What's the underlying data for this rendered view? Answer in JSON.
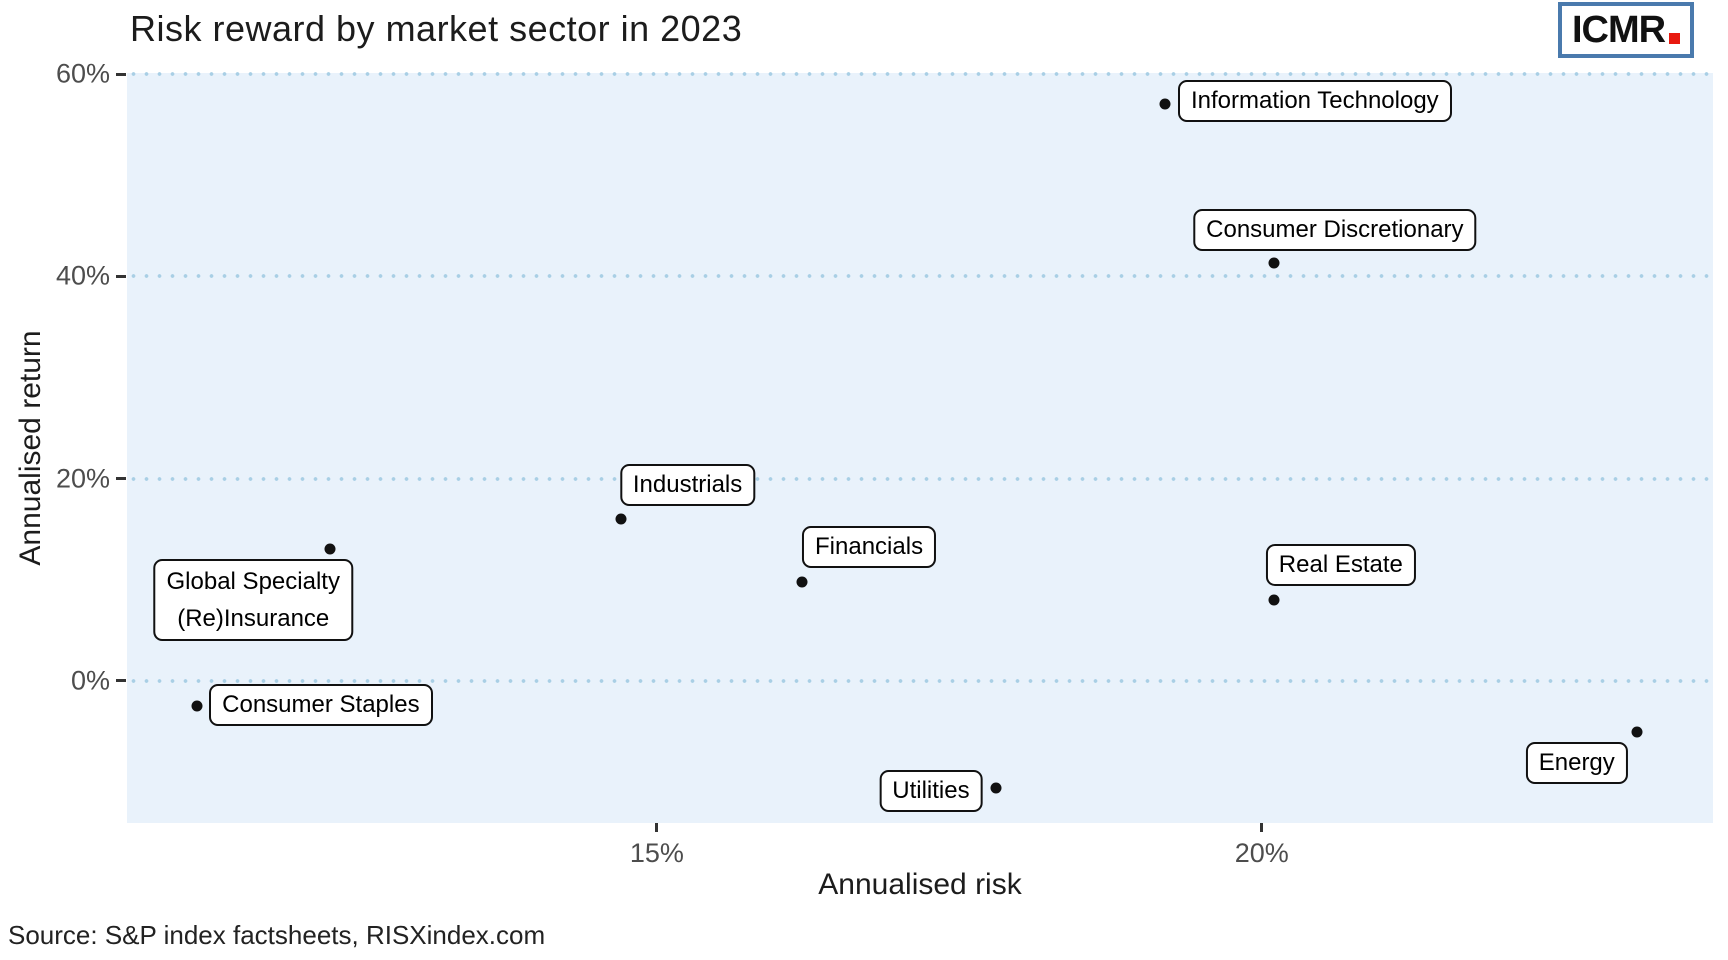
{
  "title": "Risk reward by market sector in 2023",
  "logo": {
    "text": "ICMR"
  },
  "source": "Source: S&P index factsheets, RISXindex.com",
  "chart_data": {
    "type": "scatter",
    "title": "Risk reward by market sector in 2023",
    "xlabel": "Annualised risk",
    "ylabel": "Annualised return",
    "xlim": [
      10.62,
      23.73
    ],
    "ylim": [
      -14.05,
      60.1
    ],
    "grid": "horizontal-dotted",
    "legend": "none",
    "x_ticks": [
      {
        "value": 15,
        "label": "15%"
      },
      {
        "value": 20,
        "label": "20%"
      }
    ],
    "y_ticks": [
      {
        "value": 0,
        "label": "0%"
      },
      {
        "value": 20,
        "label": "20%"
      },
      {
        "value": 40,
        "label": "40%"
      },
      {
        "value": 60,
        "label": "60%"
      }
    ],
    "points": [
      {
        "sector": "Information Technology",
        "risk": 19.2,
        "return": 57.0
      },
      {
        "sector": "Consumer Discretionary",
        "risk": 20.1,
        "return": 41.3
      },
      {
        "sector": "Industrials",
        "risk": 14.7,
        "return": 16.0
      },
      {
        "sector": "Financials",
        "risk": 16.2,
        "return": 9.8
      },
      {
        "sector": "Real Estate",
        "risk": 20.1,
        "return": 8.0
      },
      {
        "sector": "Global Specialty (Re)Insurance",
        "risk": 12.3,
        "return": 13.0,
        "label_lines": [
          "Global Specialty",
          "(Re)Insurance"
        ]
      },
      {
        "sector": "Consumer Staples",
        "risk": 11.2,
        "return": -2.5
      },
      {
        "sector": "Utilities",
        "risk": 17.8,
        "return": -10.6
      },
      {
        "sector": "Energy",
        "risk": 23.1,
        "return": -5.1
      }
    ]
  }
}
